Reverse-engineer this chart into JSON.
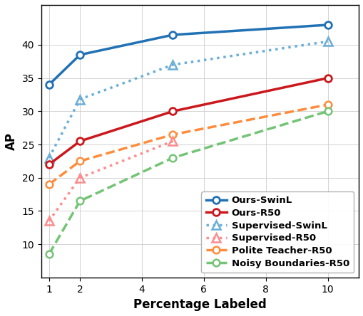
{
  "x": [
    1,
    2,
    5,
    10
  ],
  "series": {
    "Ours-SwinL": {
      "y": [
        34.0,
        38.5,
        41.5,
        43.0
      ],
      "color": "#2171b5",
      "linestyle": "solid",
      "marker": "o",
      "linewidth": 2.5,
      "markersize": 7,
      "markerfacecolor": "white",
      "markeredgewidth": 2.0,
      "zorder": 5
    },
    "Ours-R50": {
      "y": [
        22.0,
        25.5,
        30.0,
        35.0
      ],
      "color": "#cb181d",
      "linestyle": "solid",
      "marker": "o",
      "linewidth": 2.5,
      "markersize": 7,
      "markerfacecolor": "white",
      "markeredgewidth": 2.0,
      "zorder": 5
    },
    "Supervised-SwinL": {
      "y": [
        23.0,
        31.8,
        37.0,
        40.5
      ],
      "color": "#6baed6",
      "linestyle": "dotted",
      "marker": "^",
      "linewidth": 2.5,
      "markersize": 8,
      "markerfacecolor": "none",
      "markeredgewidth": 1.8,
      "zorder": 4
    },
    "Supervised-R50": {
      "y": [
        13.5,
        20.0,
        25.5,
        null
      ],
      "color": "#fc8d8d",
      "linestyle": "dotted",
      "marker": "^",
      "linewidth": 2.5,
      "markersize": 8,
      "markerfacecolor": "none",
      "markeredgewidth": 1.8,
      "zorder": 4
    },
    "Polite Teacher-R50": {
      "y": [
        19.0,
        22.5,
        26.5,
        31.0
      ],
      "color": "#fd8d3c",
      "linestyle": "dashed",
      "marker": "o",
      "linewidth": 2.5,
      "markersize": 7,
      "markerfacecolor": "white",
      "markeredgewidth": 1.8,
      "zorder": 3
    },
    "Noisy Boundaries-R50": {
      "y": [
        8.5,
        16.5,
        23.0,
        30.0
      ],
      "color": "#74c476",
      "linestyle": "dashed",
      "marker": "o",
      "linewidth": 2.5,
      "markersize": 7,
      "markerfacecolor": "white",
      "markeredgewidth": 1.8,
      "zorder": 3
    }
  },
  "xlabel": "Percentage Labeled",
  "ylabel": "AP",
  "xlim": [
    0.75,
    11.0
  ],
  "ylim": [
    5,
    46
  ],
  "xticks": [
    1,
    2,
    4,
    6,
    8,
    10
  ],
  "yticks": [
    10,
    15,
    20,
    25,
    30,
    35,
    40
  ],
  "grid": true,
  "legend_fontsize": 9.5,
  "axis_fontsize": 12,
  "tick_fontsize": 10,
  "background_color": "#ffffff"
}
